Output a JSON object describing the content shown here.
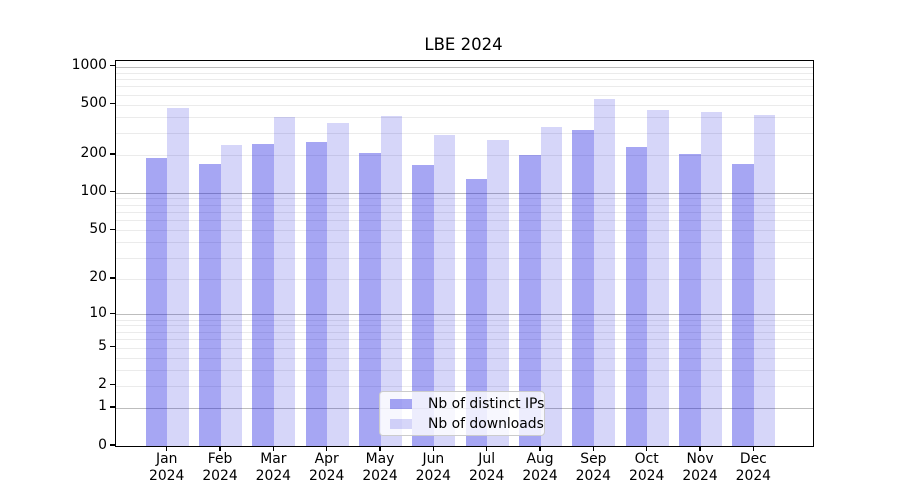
{
  "chart_data": {
    "type": "bar",
    "title": "LBE 2024",
    "categories": [
      "Jan 2024",
      "Feb 2024",
      "Mar 2024",
      "Apr 2024",
      "May 2024",
      "Jun 2024",
      "Jul 2024",
      "Aug 2024",
      "Sep 2024",
      "Oct 2024",
      "Nov 2024",
      "Dec 2024"
    ],
    "series": [
      {
        "name": "Nb of distinct IPs",
        "color": "#a8a8f0",
        "fill": "rgba(0,0,220,0.35)",
        "values": [
          190,
          168,
          244,
          255,
          208,
          165,
          128,
          198,
          315,
          230,
          202,
          168
        ]
      },
      {
        "name": "Nb of downloads",
        "color": "#d8d8f8",
        "fill": "rgba(0,0,220,0.16)",
        "values": [
          468,
          238,
          402,
          360,
          405,
          286,
          265,
          333,
          554,
          451,
          435,
          415
        ]
      }
    ],
    "xlabel": "",
    "ylabel": "",
    "y_scale": "log10(1+v) (symlog-like, includes 0)",
    "y_ticks": [
      1000,
      500,
      200,
      100,
      50,
      20,
      10,
      5,
      2,
      1,
      0
    ],
    "y_axis_max": 1111,
    "grid": true,
    "legend_position": "lower center"
  },
  "colors": {
    "background": "#ffffff",
    "grid_minor": "#ebebeb",
    "grid_major": "#bdbdbd",
    "spine": "#000000",
    "bar_ips": "#a8a8f0",
    "bar_downloads": "#d8d8f8"
  }
}
